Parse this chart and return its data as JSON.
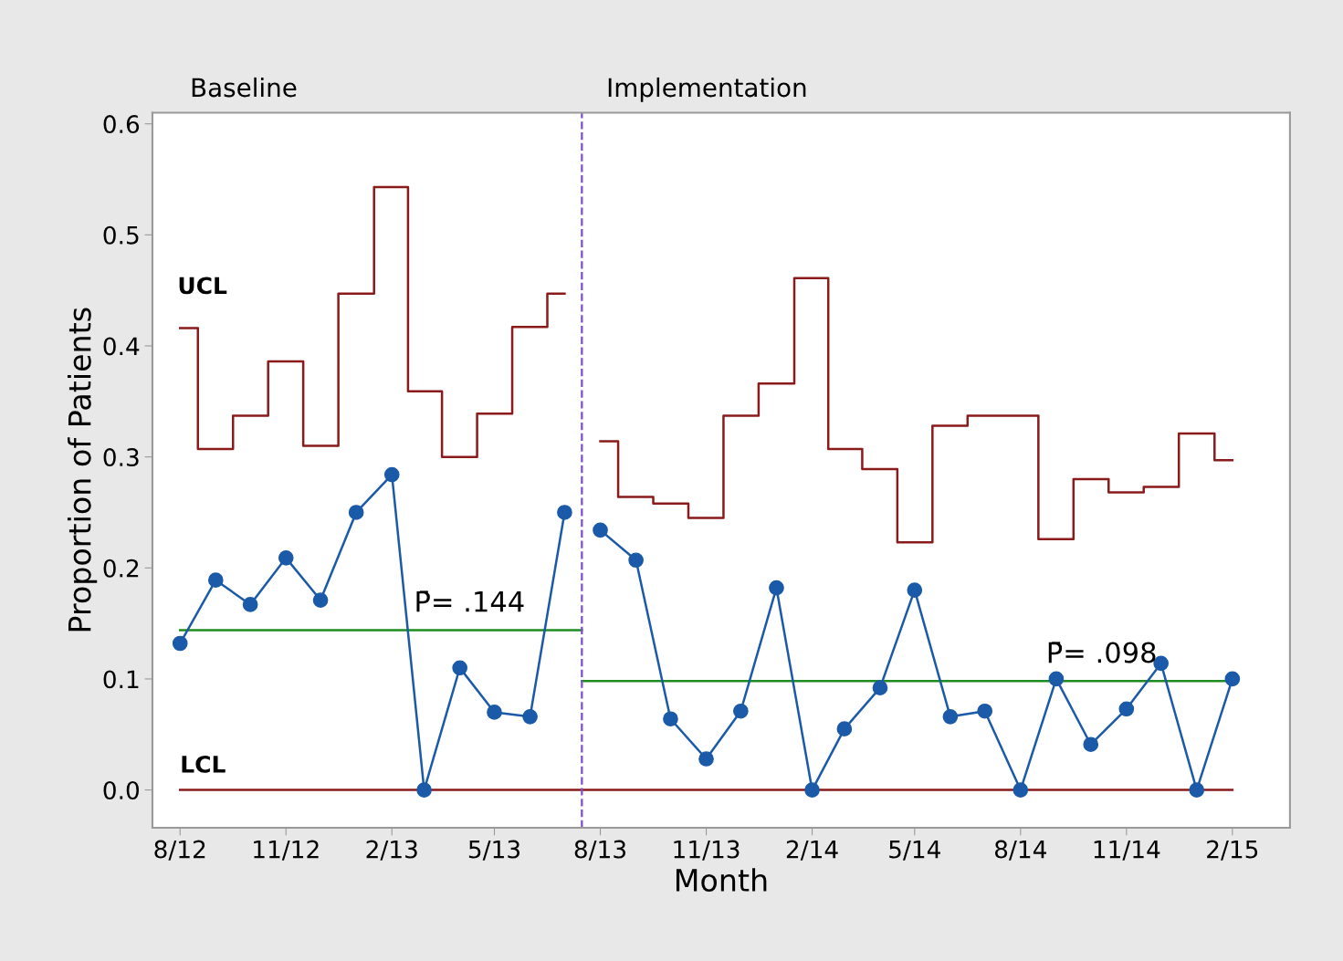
{
  "chart_data": {
    "type": "line",
    "xlabel": "Month",
    "ylabel": "Proportion of Patients",
    "xlim": [
      "2012-07-08",
      "2015-03-23"
    ],
    "ylim": [
      -0.034,
      0.61
    ],
    "yticks": [
      {
        "value": 0,
        "label": "0.0"
      },
      0.1,
      0.2,
      0.3,
      0.4,
      0.5,
      0.6
    ],
    "xticks": [
      {
        "value": "2012-08",
        "label": "8/12"
      },
      {
        "value": "2012-11",
        "label": "11/12"
      },
      {
        "value": "2013-02",
        "label": "2/13"
      },
      {
        "value": "2013-05",
        "label": "5/13"
      },
      {
        "value": "2013-08",
        "label": "8/13"
      },
      {
        "value": "2013-11",
        "label": "11/13"
      },
      {
        "value": "2014-02",
        "label": "2/14"
      },
      {
        "value": "2014-05",
        "label": "5/14"
      },
      {
        "value": "2014-08",
        "label": "8/14"
      },
      {
        "value": "2014-11",
        "label": "11/14"
      },
      {
        "value": "2015-02",
        "label": "2/15"
      }
    ],
    "grid": false,
    "legend": false,
    "series": [
      {
        "type": "step",
        "color": "#8b1a1a",
        "marker": "none",
        "x": [
          "2012-08",
          "2012-09",
          "2012-10",
          "2012-11",
          "2012-12",
          "2013-01",
          "2013-02",
          "2013-03",
          "2013-04",
          "2013-05",
          "2013-06",
          "2013-07"
        ],
        "values": [
          0.416,
          0.307,
          0.337,
          0.386,
          0.31,
          0.447,
          0.543,
          0.359,
          0.3,
          0.339,
          0.417,
          0.447
        ]
      },
      {
        "type": "step",
        "color": "#8b1a1a",
        "marker": "none",
        "x": [
          "2013-08",
          "2013-09",
          "2013-10",
          "2013-11",
          "2013-12",
          "2014-01",
          "2014-02",
          "2014-03",
          "2014-04",
          "2014-05",
          "2014-06",
          "2014-07",
          "2014-08",
          "2014-09",
          "2014-10",
          "2014-11",
          "2014-12",
          "2015-01",
          "2015-02"
        ],
        "values": [
          0.314,
          0.264,
          0.258,
          0.245,
          0.337,
          0.366,
          0.461,
          0.307,
          0.289,
          0.223,
          0.328,
          0.337,
          0.337,
          0.226,
          0.28,
          0.268,
          0.273,
          0.321,
          0.297
        ]
      },
      {
        "color": "#8b1a1a",
        "marker": "none",
        "x": [
          "2012-08",
          "2015-02"
        ],
        "values": [
          0,
          0
        ]
      },
      {
        "color": "#1e8c1e",
        "marker": "none",
        "x": [
          "2012-08",
          "2013-07-16"
        ],
        "values": [
          0.144,
          0.144
        ]
      },
      {
        "color": "#1e8c1e",
        "marker": "none",
        "x": [
          "2013-07-16",
          "2015-02"
        ],
        "values": [
          0.098,
          0.098
        ]
      },
      {
        "color": "#1a5aa8",
        "marker": "circle",
        "x": [
          "2012-08",
          "2012-09",
          "2012-10",
          "2012-11",
          "2012-12",
          "2013-01",
          "2013-02",
          "2013-03",
          "2013-04",
          "2013-05",
          "2013-06",
          "2013-07"
        ],
        "values": [
          0.132,
          0.189,
          0.167,
          0.209,
          0.171,
          0.25,
          0.284,
          0,
          0.11,
          0.07,
          0.066,
          0.25
        ]
      },
      {
        "color": "#1a5aa8",
        "marker": "circle",
        "x": [
          "2013-08",
          "2013-09",
          "2013-10",
          "2013-11",
          "2013-12",
          "2014-01",
          "2014-02",
          "2014-03",
          "2014-04",
          "2014-05",
          "2014-06",
          "2014-07",
          "2014-08",
          "2014-09",
          "2014-10",
          "2014-11",
          "2014-12",
          "2015-01",
          "2015-02"
        ],
        "values": [
          0.234,
          0.207,
          0.064,
          0.028,
          0.071,
          0.182,
          0,
          0.055,
          0.092,
          0.18,
          0.066,
          0.071,
          0,
          0.1,
          0.041,
          0.073,
          0.114,
          0,
          0.1
        ]
      }
    ],
    "ref_lines": [
      {
        "axis": "x",
        "value": "2013-07-16",
        "color": "#7b4fc9",
        "line_style": "dashed"
      }
    ],
    "annotations": [
      "Baseline",
      "Implementation",
      "UCL",
      {
        "text": "LCL",
        "x": "2012-08",
        "y": 0
      },
      {
        "text": "P̄= .144",
        "x": "2013-03",
        "y": 0.144
      },
      {
        "text": "P̄= .098",
        "x": "2014-09",
        "y": 0.098
      }
    ]
  }
}
